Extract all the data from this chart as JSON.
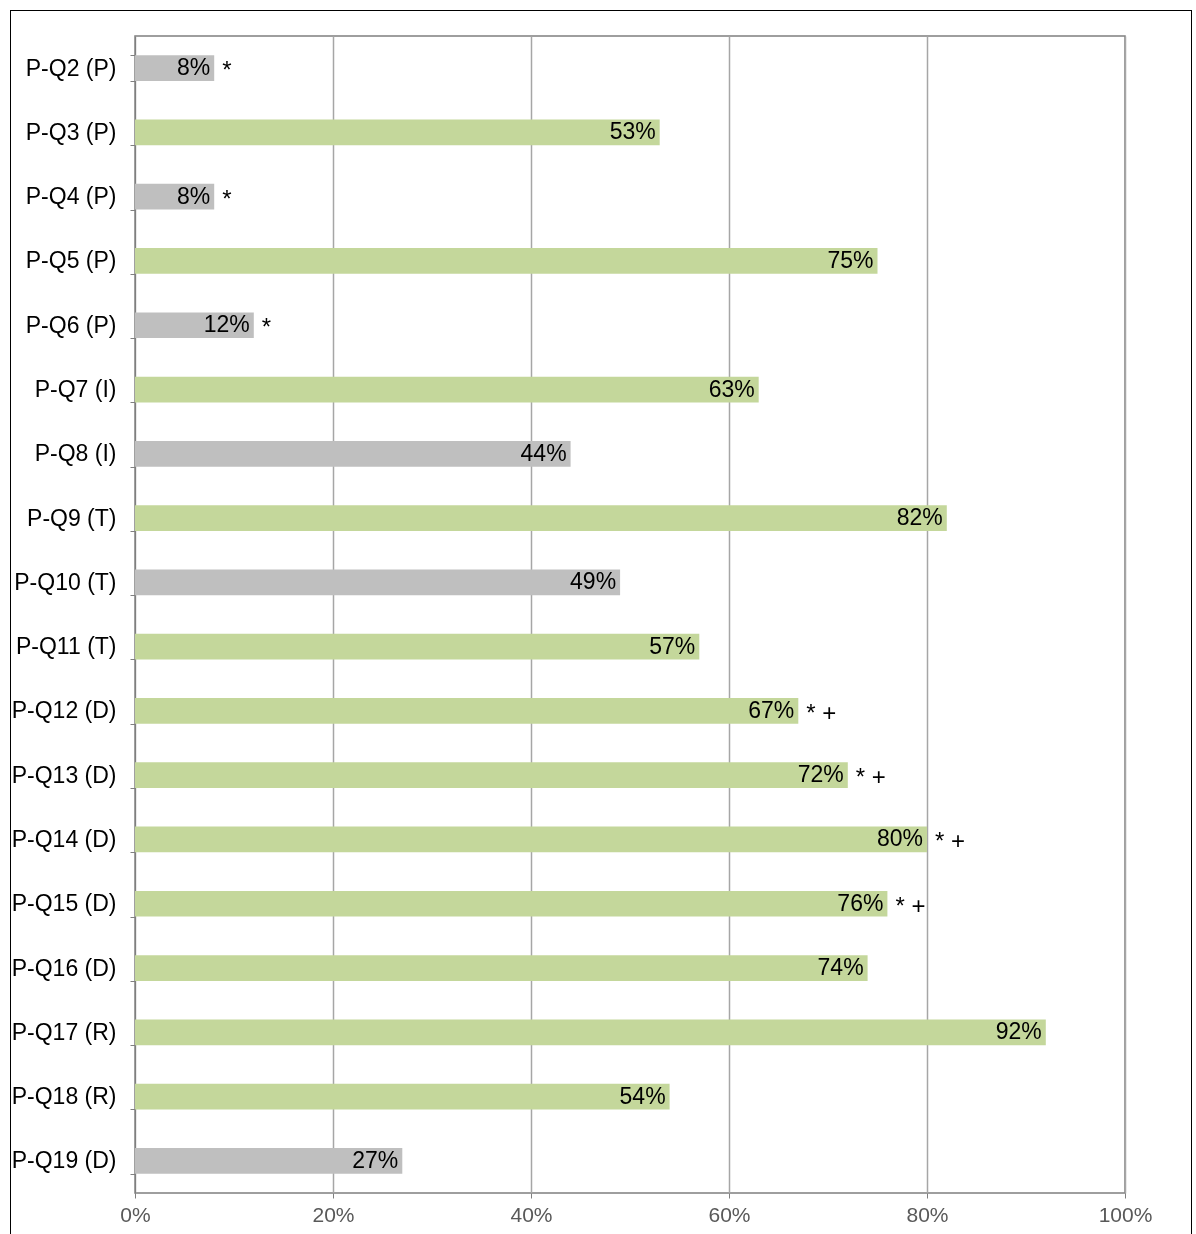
{
  "chart_data": {
    "type": "bar",
    "orientation": "horizontal",
    "categories": [
      "P-Q2 (P)",
      "P-Q3 (P)",
      "P-Q4 (P)",
      "P-Q5 (P)",
      "P-Q6 (P)",
      "P-Q7 (I)",
      "P-Q8 (I)",
      "P-Q9 (T)",
      "P-Q10 (T)",
      "P-Q11 (T)",
      "P-Q12 (D)",
      "P-Q13 (D)",
      "P-Q14 (D)",
      "P-Q15 (D)",
      "P-Q16 (D)",
      "P-Q17 (R)",
      "P-Q18 (R)",
      "P-Q19 (D)"
    ],
    "values": [
      8,
      53,
      8,
      75,
      12,
      63,
      44,
      82,
      49,
      57,
      67,
      72,
      80,
      76,
      74,
      92,
      54,
      27
    ],
    "value_labels": [
      "8%",
      "53%",
      "8%",
      "75%",
      "12%",
      "63%",
      "44%",
      "82%",
      "49%",
      "57%",
      "67%",
      "72%",
      "80%",
      "76%",
      "74%",
      "92%",
      "54%",
      "27%"
    ],
    "colors": [
      "#bfbfbf",
      "#c4d79b",
      "#bfbfbf",
      "#c4d79b",
      "#bfbfbf",
      "#c4d79b",
      "#bfbfbf",
      "#c4d79b",
      "#bfbfbf",
      "#c4d79b",
      "#c4d79b",
      "#c4d79b",
      "#c4d79b",
      "#c4d79b",
      "#c4d79b",
      "#c4d79b",
      "#c4d79b",
      "#bfbfbf"
    ],
    "xlim": [
      0,
      100
    ],
    "xticks": [
      {
        "value": 0,
        "label": "0%"
      },
      {
        "value": 20,
        "label": "20%"
      },
      {
        "value": 40,
        "label": "40%"
      },
      {
        "value": 60,
        "label": "60%"
      },
      {
        "value": 80,
        "label": "80%"
      },
      {
        "value": 100,
        "label": "100%"
      }
    ],
    "grid": "x",
    "annotations": [
      {
        "text": "*",
        "x": 8,
        "y": "P-Q2 (P)"
      },
      {
        "text": "*",
        "x": 8,
        "y": "P-Q4 (P)"
      },
      {
        "text": "*",
        "x": 12,
        "y": "P-Q6 (P)"
      },
      {
        "text": "* +",
        "x": 67,
        "y": "P-Q12 (D)"
      },
      {
        "text": "* +",
        "x": 72,
        "y": "P-Q13 (D)"
      },
      {
        "text": "* +",
        "x": 80,
        "y": "P-Q14 (D)"
      },
      {
        "text": "* +",
        "x": 76,
        "y": "P-Q15 (D)"
      }
    ]
  }
}
